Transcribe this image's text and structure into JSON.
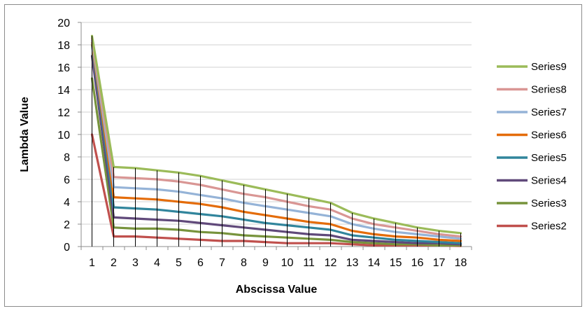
{
  "chart_data": {
    "type": "line",
    "title": "",
    "xlabel": "Abscissa Value",
    "ylabel": "Lambda Value",
    "ylim": [
      0,
      20
    ],
    "yticks": [
      0,
      2,
      4,
      6,
      8,
      10,
      12,
      14,
      16,
      18,
      20
    ],
    "categories": [
      "1",
      "2",
      "3",
      "4",
      "5",
      "6",
      "7",
      "8",
      "9",
      "10",
      "11",
      "12",
      "13",
      "14",
      "15",
      "16",
      "17",
      "18"
    ],
    "grid": "horizontal",
    "drop_lines": true,
    "legend_position": "right",
    "series": [
      {
        "name": "Series9",
        "color": "#9bbb59",
        "values": [
          18.8,
          7.1,
          7.0,
          6.8,
          6.6,
          6.3,
          5.9,
          5.5,
          5.1,
          4.7,
          4.3,
          3.9,
          3.0,
          2.5,
          2.1,
          1.7,
          1.4,
          1.2
        ]
      },
      {
        "name": "Series8",
        "color": "#d99694",
        "values": [
          18.6,
          6.2,
          6.1,
          6.0,
          5.8,
          5.5,
          5.1,
          4.7,
          4.4,
          4.0,
          3.6,
          3.3,
          2.5,
          2.0,
          1.7,
          1.4,
          1.1,
          0.9
        ]
      },
      {
        "name": "Series7",
        "color": "#95b3d7",
        "values": [
          18.4,
          5.3,
          5.2,
          5.1,
          4.9,
          4.6,
          4.3,
          3.9,
          3.6,
          3.3,
          3.0,
          2.7,
          2.0,
          1.6,
          1.3,
          1.1,
          0.9,
          0.7
        ]
      },
      {
        "name": "Series6",
        "color": "#e46c0a",
        "values": [
          18.2,
          4.4,
          4.3,
          4.2,
          4.0,
          3.8,
          3.5,
          3.1,
          2.8,
          2.5,
          2.2,
          2.0,
          1.4,
          1.1,
          0.9,
          0.8,
          0.6,
          0.5
        ]
      },
      {
        "name": "Series5",
        "color": "#31859c",
        "values": [
          18.0,
          3.5,
          3.4,
          3.3,
          3.1,
          2.9,
          2.7,
          2.4,
          2.1,
          1.9,
          1.7,
          1.5,
          1.0,
          0.8,
          0.6,
          0.5,
          0.4,
          0.3
        ]
      },
      {
        "name": "Series4",
        "color": "#60497a",
        "values": [
          17.0,
          2.6,
          2.5,
          2.4,
          2.3,
          2.1,
          1.9,
          1.7,
          1.5,
          1.3,
          1.1,
          1.0,
          0.6,
          0.5,
          0.4,
          0.3,
          0.3,
          0.2
        ]
      },
      {
        "name": "Series3",
        "color": "#77933c",
        "values": [
          15.0,
          1.7,
          1.6,
          1.6,
          1.5,
          1.3,
          1.2,
          1.0,
          0.9,
          0.8,
          0.7,
          0.6,
          0.4,
          0.3,
          0.2,
          0.2,
          0.1,
          0.1
        ]
      },
      {
        "name": "Series2",
        "color": "#c0504d",
        "values": [
          10.0,
          0.9,
          0.9,
          0.8,
          0.7,
          0.6,
          0.5,
          0.5,
          0.4,
          0.3,
          0.3,
          0.3,
          0.2,
          0.1,
          0.1,
          0.1,
          0.1,
          0.05
        ]
      }
    ]
  }
}
